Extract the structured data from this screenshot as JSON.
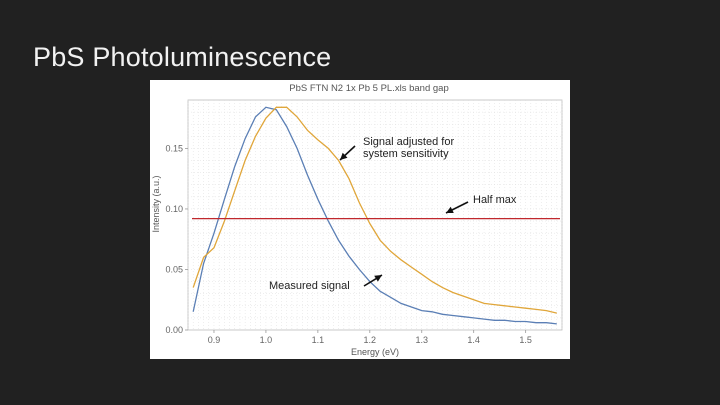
{
  "slide": {
    "title": "PbS Photoluminescence"
  },
  "annotations": {
    "adjusted": [
      "Signal adjusted for",
      "system sensitivity"
    ],
    "half_max": "Half max",
    "measured": "Measured signal"
  },
  "chart_data": {
    "type": "line",
    "title": "PbS FTN N2 1x Pb 5 PL.xls band gap",
    "xlabel": "Energy (eV)",
    "ylabel": "Intensity (a.u.)",
    "xlim": [
      0.85,
      1.57
    ],
    "ylim": [
      0.0,
      0.19
    ],
    "xticks": [
      0.9,
      1.0,
      1.1,
      1.2,
      1.3,
      1.4,
      1.5
    ],
    "xtick_labels": [
      "0.9",
      "1.0",
      "1.1",
      "1.2",
      "1.3",
      "1.4",
      "1.5"
    ],
    "yticks": [
      0.0,
      0.05,
      0.1,
      0.15
    ],
    "ytick_labels": [
      "0.00",
      "0.05",
      "0.10",
      "0.15"
    ],
    "grid": true,
    "colors": {
      "measured": "#5b7fb5",
      "adjusted": "#e0a63a",
      "halfmax": "#c0282d",
      "grid": "#dddddd"
    },
    "series": [
      {
        "key": "measured",
        "x": [
          0.86,
          0.88,
          0.9,
          0.92,
          0.94,
          0.96,
          0.98,
          1.0,
          1.02,
          1.04,
          1.06,
          1.08,
          1.1,
          1.12,
          1.14,
          1.16,
          1.18,
          1.2,
          1.22,
          1.24,
          1.26,
          1.28,
          1.3,
          1.32,
          1.34,
          1.36,
          1.38,
          1.4,
          1.42,
          1.44,
          1.46,
          1.48,
          1.5,
          1.52,
          1.54,
          1.56
        ],
        "y": [
          0.015,
          0.055,
          0.08,
          0.108,
          0.135,
          0.158,
          0.176,
          0.184,
          0.182,
          0.168,
          0.15,
          0.128,
          0.108,
          0.09,
          0.074,
          0.061,
          0.05,
          0.04,
          0.032,
          0.027,
          0.022,
          0.019,
          0.016,
          0.015,
          0.013,
          0.012,
          0.011,
          0.01,
          0.009,
          0.008,
          0.008,
          0.007,
          0.007,
          0.006,
          0.006,
          0.005
        ]
      },
      {
        "key": "adjusted",
        "x": [
          0.86,
          0.88,
          0.9,
          0.92,
          0.94,
          0.96,
          0.98,
          1.0,
          1.02,
          1.04,
          1.06,
          1.08,
          1.1,
          1.12,
          1.14,
          1.16,
          1.18,
          1.2,
          1.22,
          1.24,
          1.26,
          1.28,
          1.3,
          1.32,
          1.34,
          1.36,
          1.38,
          1.4,
          1.42,
          1.44,
          1.46,
          1.48,
          1.5,
          1.52,
          1.54,
          1.56
        ],
        "y": [
          0.035,
          0.06,
          0.068,
          0.09,
          0.115,
          0.14,
          0.16,
          0.175,
          0.184,
          0.184,
          0.176,
          0.165,
          0.157,
          0.15,
          0.14,
          0.125,
          0.105,
          0.088,
          0.074,
          0.065,
          0.058,
          0.052,
          0.046,
          0.04,
          0.035,
          0.031,
          0.028,
          0.025,
          0.022,
          0.021,
          0.02,
          0.019,
          0.018,
          0.017,
          0.016,
          0.014
        ]
      }
    ],
    "hlines": [
      {
        "key": "halfmax",
        "y": 0.092
      }
    ]
  }
}
